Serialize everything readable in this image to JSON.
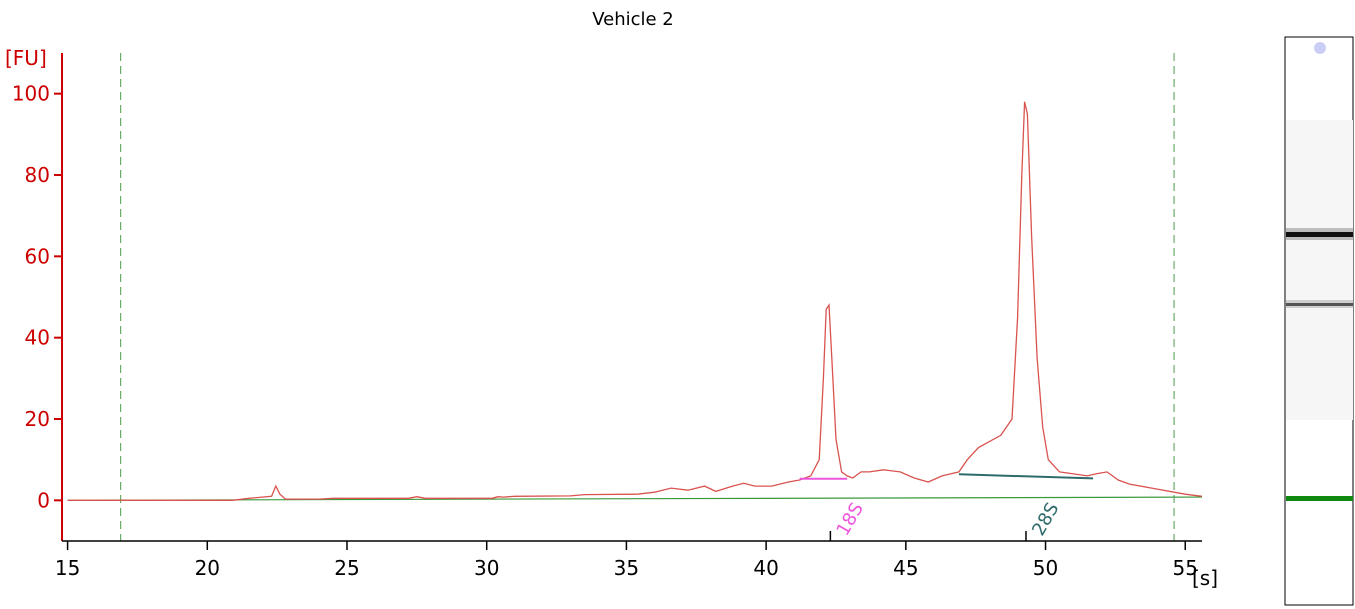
{
  "chart_data": {
    "type": "line",
    "title": "Vehicle 2",
    "ylabel": "[FU]",
    "xlabel": "[s]",
    "xlim": [
      14.8,
      55.6
    ],
    "ylim": [
      -10,
      110
    ],
    "yticks": [
      0,
      20,
      40,
      60,
      80,
      100
    ],
    "ytick_labels": [
      "0",
      "20",
      "40",
      "60",
      "80",
      "100"
    ],
    "xticks": [
      15,
      20,
      25,
      30,
      35,
      40,
      45,
      50,
      55
    ],
    "xtick_labels": [
      "15",
      "20",
      "25",
      "30",
      "35",
      "40",
      "45",
      "50",
      "55"
    ],
    "grid": false,
    "colors": {
      "trace": "#d9534f",
      "axis": "#cc0000",
      "baseline": "#3a9a3a",
      "marker_lines": "#4a9a4a",
      "peak_18s": "#ee55dd",
      "peak_28s": "#2e6b6b",
      "gel_band": "#111111",
      "gel_marker": "#118811"
    },
    "vertical_markers": [
      16.9,
      54.6
    ],
    "series": [
      {
        "x": [
          15.0,
          17.0,
          20.9,
          21.5,
          22.3,
          22.45,
          22.6,
          22.8,
          24.0,
          24.5,
          27.2,
          27.5,
          27.8,
          30.2,
          30.4,
          30.6,
          31.0,
          33.0,
          33.5,
          35.4,
          36.0,
          36.6,
          37.2,
          37.8,
          38.2,
          38.8,
          39.2,
          39.6,
          40.2,
          40.8,
          41.2,
          41.6,
          41.9,
          42.05,
          42.15,
          42.25,
          42.35,
          42.5,
          42.7,
          42.9,
          43.1,
          43.4,
          43.7,
          44.2,
          44.8,
          45.3,
          45.8,
          46.3,
          46.9,
          47.2,
          47.6,
          48.0,
          48.4,
          48.8,
          49.0,
          49.15,
          49.25,
          49.35,
          49.5,
          49.7,
          49.9,
          50.1,
          50.5,
          51.0,
          51.5,
          51.8,
          52.2,
          52.6,
          53.0,
          53.8,
          55.0,
          55.6
        ],
        "values": [
          0,
          0,
          0,
          0.5,
          1.0,
          3.5,
          1.5,
          0.3,
          0.3,
          0.5,
          0.5,
          0.9,
          0.5,
          0.5,
          0.9,
          0.8,
          1.0,
          1.1,
          1.4,
          1.5,
          2.0,
          3.0,
          2.5,
          3.5,
          2.2,
          3.5,
          4.2,
          3.5,
          3.5,
          4.5,
          5.0,
          6.0,
          10.0,
          30.0,
          47.0,
          48.0,
          35.0,
          15.0,
          7.0,
          6.0,
          5.5,
          7.0,
          7.0,
          7.5,
          7.0,
          5.5,
          4.5,
          6.0,
          7.0,
          10.0,
          13.0,
          14.5,
          16.0,
          20.0,
          45.0,
          80.0,
          98.0,
          95.0,
          65.0,
          35.0,
          18.0,
          10.0,
          7.0,
          6.5,
          6.0,
          6.5,
          7.0,
          5.0,
          4.0,
          3.0,
          1.5,
          1.0
        ]
      },
      {
        "x": [
          15.0,
          55.6
        ],
        "values": [
          0,
          0.8
        ]
      }
    ],
    "peaks": [
      {
        "label": "18S",
        "x": 42.3,
        "start": 41.2,
        "end": 42.9,
        "level": 5.3
      },
      {
        "label": "28S",
        "x": 49.3,
        "start": 46.9,
        "end": 51.7,
        "start_level": 6.4,
        "end_level": 5.4
      }
    ]
  }
}
